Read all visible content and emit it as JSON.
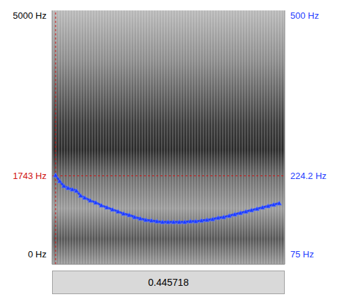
{
  "chart_data": {
    "type": "line",
    "xlim": [
      0,
      0.445718
    ],
    "ylim": [
      0,
      5000
    ],
    "yticks": [
      {
        "value": 0,
        "label": "0 Hz"
      },
      {
        "value": 1743,
        "label": "1743 Hz"
      },
      {
        "value": 5000,
        "label": "5000 Hz"
      }
    ],
    "y2lim": [
      75,
      500
    ],
    "y2ticks": [
      {
        "value": 75,
        "label": "75 Hz"
      },
      {
        "value": 224.2,
        "label": "224.2 Hz"
      },
      {
        "value": 500,
        "label": "500 Hz"
      }
    ],
    "cursor": {
      "time": 0.0067,
      "frequency": 1743
    },
    "x": [
      0.0067,
      0.0146,
      0.0226,
      0.0306,
      0.0386,
      0.0466,
      0.0546,
      0.0625,
      0.0732,
      0.0838,
      0.0945,
      0.1051,
      0.1158,
      0.1264,
      0.137,
      0.1477,
      0.1583,
      0.169,
      0.1796,
      0.1903,
      0.2009,
      0.2116,
      0.2222,
      0.2328,
      0.2435,
      0.2541,
      0.2648,
      0.2754,
      0.2861,
      0.2967,
      0.3074,
      0.318,
      0.3286,
      0.3393,
      0.3499,
      0.3606,
      0.3712,
      0.3819,
      0.3925,
      0.4031,
      0.4138,
      0.4244,
      0.4351
    ],
    "values": [
      224.2,
      214.3,
      206.2,
      202.7,
      200.4,
      198.1,
      190,
      186.5,
      181.8,
      178.3,
      173.7,
      170.2,
      166.7,
      163.3,
      159.8,
      157.4,
      154,
      151.6,
      149.3,
      148.2,
      147,
      145.8,
      145.8,
      145.8,
      145.8,
      145.8,
      147,
      147,
      148.2,
      149.3,
      150.5,
      152.8,
      154,
      156.3,
      158.6,
      160.9,
      163.3,
      165.6,
      167.9,
      170.2,
      172.5,
      174.9,
      177.2
    ],
    "axis": "y2",
    "color": "#1f3cff",
    "marker": "triangle",
    "line_style": "solid"
  }
}
